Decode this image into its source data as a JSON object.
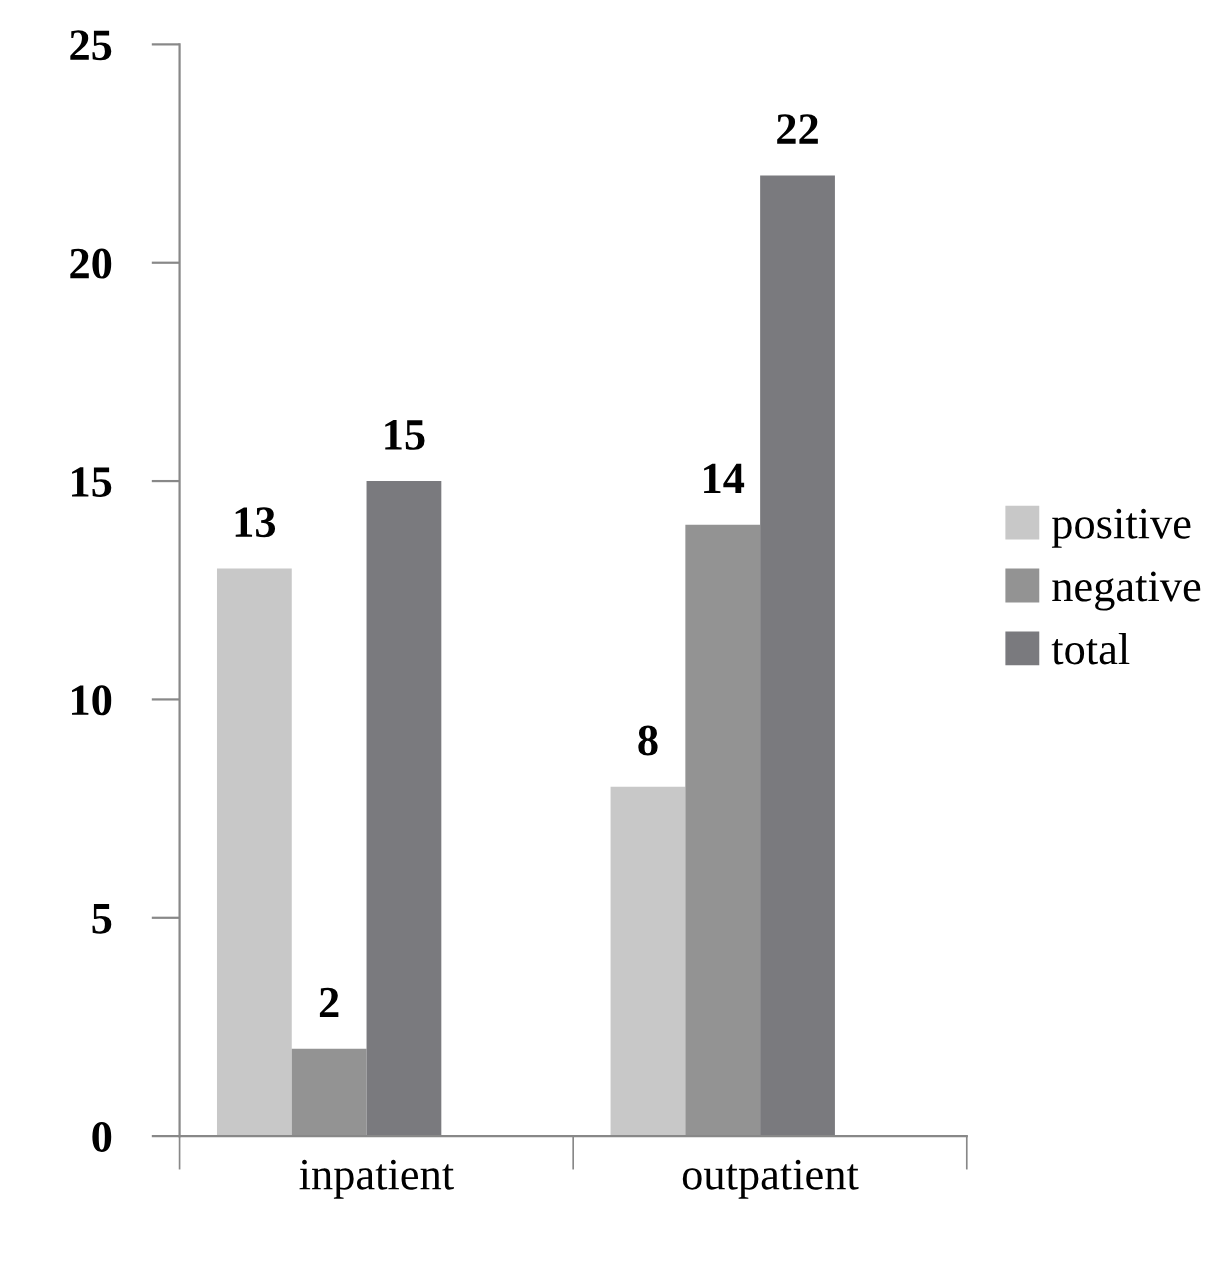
{
  "chart_data": {
    "type": "bar",
    "categories": [
      "inpatient",
      "outpatient"
    ],
    "series": [
      {
        "name": "positive",
        "color": "#c8c8c8",
        "values": [
          13,
          8
        ]
      },
      {
        "name": "negative",
        "color": "#939393",
        "values": [
          2,
          14
        ]
      },
      {
        "name": "total",
        "color": "#7a7a7e",
        "values": [
          15,
          22
        ]
      }
    ],
    "ylim": [
      0,
      25
    ],
    "yticks": [
      0,
      5,
      10,
      15,
      20,
      25
    ],
    "grid": false,
    "legend": "right",
    "data_labels": true
  }
}
